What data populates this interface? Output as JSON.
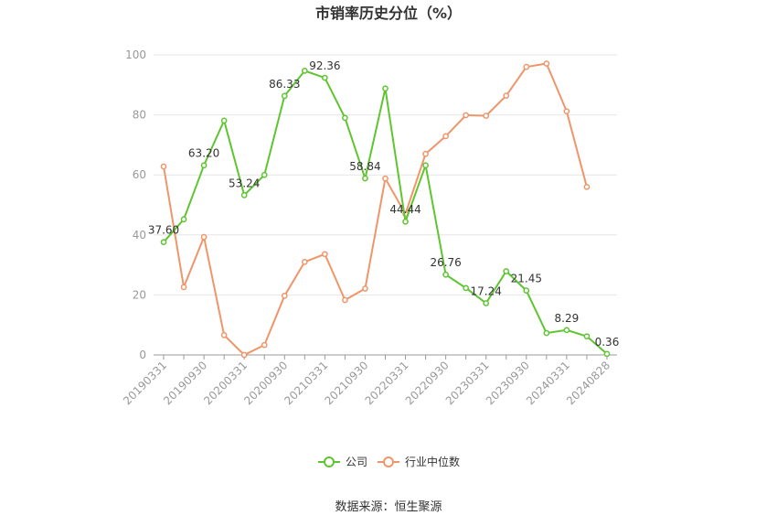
{
  "chart_data": {
    "type": "line",
    "title": "市销率历史分位（%）",
    "xlabel": "",
    "ylabel": "",
    "ylim": [
      0,
      100
    ],
    "yticks": [
      0,
      20,
      40,
      60,
      80,
      100
    ],
    "grid": true,
    "legend": "bottom-center",
    "x": [
      "20190331",
      "20190630",
      "20190930",
      "20191231",
      "20200331",
      "20200630",
      "20200930",
      "20201231",
      "20210331",
      "20210630",
      "20210930",
      "20211231",
      "20220331",
      "20220630",
      "20220930",
      "20221231",
      "20230331",
      "20230630",
      "20230930",
      "20231231",
      "20240331",
      "20240630",
      "20240828"
    ],
    "x_tick_labels": [
      "20190331",
      "20190930",
      "20200331",
      "20200930",
      "20210331",
      "20210930",
      "20220331",
      "20220930",
      "20230331",
      "20230930",
      "20240331",
      "20240828"
    ],
    "series": [
      {
        "name": "公司",
        "color": "#5ec531",
        "values": [
          37.6,
          45.2,
          63.2,
          78.1,
          53.24,
          60.0,
          86.33,
          94.7,
          92.36,
          79.0,
          58.84,
          88.8,
          44.44,
          63.2,
          26.76,
          22.3,
          17.24,
          27.9,
          21.45,
          7.3,
          8.29,
          6.2,
          0.36
        ],
        "labels": [
          "37.60",
          null,
          "63.20",
          null,
          "53.24",
          null,
          "86.33",
          null,
          "92.36",
          null,
          "58.84",
          null,
          "44.44",
          null,
          "26.76",
          null,
          "17.24",
          null,
          "21.45",
          null,
          "8.29",
          null,
          "0.36"
        ]
      },
      {
        "name": "行业中位数",
        "color": "#f0956a",
        "values": [
          62.8,
          22.6,
          39.3,
          6.6,
          0.0,
          3.3,
          19.7,
          31.0,
          33.6,
          18.3,
          22.1,
          58.8,
          47.0,
          67.0,
          72.9,
          79.9,
          79.7,
          86.4,
          96.0,
          97.1,
          81.2,
          56.0,
          null
        ]
      }
    ],
    "source": "数据来源：恒生聚源"
  }
}
